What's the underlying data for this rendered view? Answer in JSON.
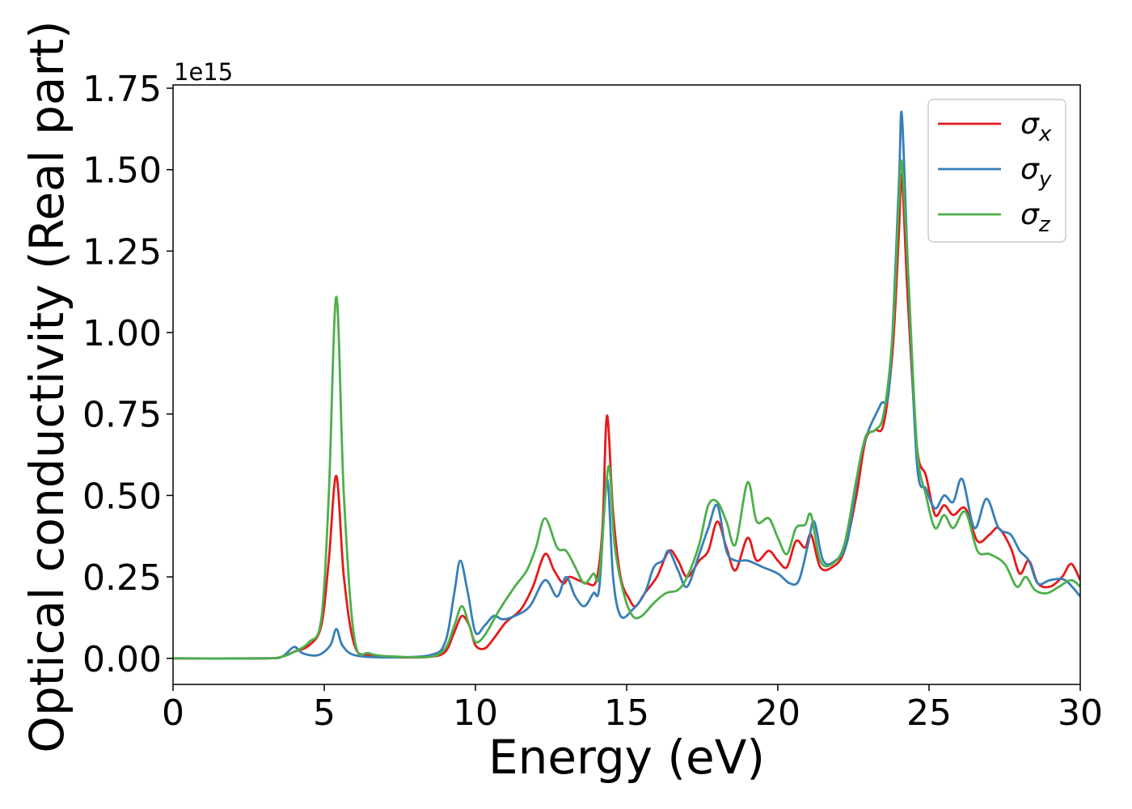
{
  "chart_data": {
    "type": "line",
    "xlabel": "Energy (eV)",
    "ylabel": "Optical conductivity (Real part)",
    "y_offset_label": "1e15",
    "xlim": [
      0,
      30
    ],
    "ylim": [
      -0.08,
      1.76
    ],
    "x_ticks": [
      0,
      5,
      10,
      15,
      20,
      25,
      30
    ],
    "x_tick_labels": [
      "0",
      "5",
      "10",
      "15",
      "20",
      "25",
      "30"
    ],
    "y_ticks": [
      0.0,
      0.25,
      0.5,
      0.75,
      1.0,
      1.25,
      1.5,
      1.75
    ],
    "y_tick_labels": [
      "0.00",
      "0.25",
      "0.50",
      "0.75",
      "1.00",
      "1.25",
      "1.50",
      "1.75"
    ],
    "grid": false,
    "legend_position": "top-right",
    "series": [
      {
        "name": "σx",
        "symbol": "σ",
        "subscript": "x",
        "color": "#e41a1c",
        "points": [
          [
            0,
            0
          ],
          [
            3.0,
            0.0
          ],
          [
            3.6,
            0.005
          ],
          [
            4.0,
            0.02
          ],
          [
            4.5,
            0.04
          ],
          [
            4.9,
            0.1
          ],
          [
            5.15,
            0.3
          ],
          [
            5.4,
            0.56
          ],
          [
            5.65,
            0.25
          ],
          [
            6.0,
            0.04
          ],
          [
            6.5,
            0.01
          ],
          [
            7.5,
            0.003
          ],
          [
            8.5,
            0.005
          ],
          [
            9.0,
            0.02
          ],
          [
            9.3,
            0.08
          ],
          [
            9.55,
            0.13
          ],
          [
            9.8,
            0.1
          ],
          [
            10.0,
            0.04
          ],
          [
            10.3,
            0.03
          ],
          [
            10.6,
            0.06
          ],
          [
            11.0,
            0.11
          ],
          [
            11.5,
            0.15
          ],
          [
            11.9,
            0.22
          ],
          [
            12.3,
            0.32
          ],
          [
            12.6,
            0.27
          ],
          [
            12.9,
            0.23
          ],
          [
            13.1,
            0.25
          ],
          [
            13.4,
            0.24
          ],
          [
            13.7,
            0.23
          ],
          [
            14.0,
            0.24
          ],
          [
            14.2,
            0.4
          ],
          [
            14.35,
            0.745
          ],
          [
            14.55,
            0.45
          ],
          [
            14.8,
            0.25
          ],
          [
            15.1,
            0.18
          ],
          [
            15.3,
            0.16
          ],
          [
            15.6,
            0.2
          ],
          [
            16.0,
            0.25
          ],
          [
            16.4,
            0.33
          ],
          [
            16.7,
            0.3
          ],
          [
            17.0,
            0.25
          ],
          [
            17.4,
            0.3
          ],
          [
            17.7,
            0.33
          ],
          [
            18.0,
            0.42
          ],
          [
            18.3,
            0.34
          ],
          [
            18.6,
            0.27
          ],
          [
            19.0,
            0.37
          ],
          [
            19.3,
            0.3
          ],
          [
            19.7,
            0.33
          ],
          [
            20.0,
            0.3
          ],
          [
            20.3,
            0.28
          ],
          [
            20.6,
            0.36
          ],
          [
            20.9,
            0.34
          ],
          [
            21.1,
            0.38
          ],
          [
            21.4,
            0.28
          ],
          [
            21.8,
            0.28
          ],
          [
            22.2,
            0.33
          ],
          [
            22.6,
            0.5
          ],
          [
            22.9,
            0.67
          ],
          [
            23.2,
            0.7
          ],
          [
            23.5,
            0.72
          ],
          [
            23.8,
            0.95
          ],
          [
            24.0,
            1.3
          ],
          [
            24.1,
            1.48
          ],
          [
            24.3,
            1.1
          ],
          [
            24.6,
            0.65
          ],
          [
            24.9,
            0.56
          ],
          [
            25.2,
            0.44
          ],
          [
            25.5,
            0.47
          ],
          [
            25.8,
            0.44
          ],
          [
            26.2,
            0.46
          ],
          [
            26.6,
            0.36
          ],
          [
            27.0,
            0.38
          ],
          [
            27.3,
            0.4
          ],
          [
            27.7,
            0.34
          ],
          [
            28.0,
            0.26
          ],
          [
            28.3,
            0.3
          ],
          [
            28.6,
            0.23
          ],
          [
            29.0,
            0.22
          ],
          [
            29.4,
            0.25
          ],
          [
            29.7,
            0.29
          ],
          [
            30,
            0.24
          ]
        ]
      },
      {
        "name": "σy",
        "symbol": "σ",
        "subscript": "y",
        "color": "#377eb8",
        "points": [
          [
            0,
            0
          ],
          [
            3.0,
            0.0
          ],
          [
            3.6,
            0.005
          ],
          [
            4.0,
            0.035
          ],
          [
            4.3,
            0.015
          ],
          [
            4.8,
            0.01
          ],
          [
            5.2,
            0.04
          ],
          [
            5.4,
            0.09
          ],
          [
            5.6,
            0.04
          ],
          [
            6.0,
            0.01
          ],
          [
            7.0,
            0.003
          ],
          [
            8.5,
            0.01
          ],
          [
            9.0,
            0.05
          ],
          [
            9.3,
            0.2
          ],
          [
            9.5,
            0.3
          ],
          [
            9.75,
            0.2
          ],
          [
            10.0,
            0.08
          ],
          [
            10.3,
            0.1
          ],
          [
            10.6,
            0.13
          ],
          [
            10.9,
            0.12
          ],
          [
            11.3,
            0.13
          ],
          [
            11.8,
            0.16
          ],
          [
            12.3,
            0.24
          ],
          [
            12.7,
            0.19
          ],
          [
            13.0,
            0.25
          ],
          [
            13.3,
            0.19
          ],
          [
            13.6,
            0.16
          ],
          [
            13.9,
            0.2
          ],
          [
            14.1,
            0.22
          ],
          [
            14.35,
            0.55
          ],
          [
            14.55,
            0.25
          ],
          [
            14.8,
            0.13
          ],
          [
            15.2,
            0.15
          ],
          [
            15.6,
            0.2
          ],
          [
            15.9,
            0.28
          ],
          [
            16.2,
            0.3
          ],
          [
            16.4,
            0.33
          ],
          [
            16.7,
            0.27
          ],
          [
            17.0,
            0.22
          ],
          [
            17.4,
            0.32
          ],
          [
            17.7,
            0.4
          ],
          [
            18.0,
            0.47
          ],
          [
            18.3,
            0.33
          ],
          [
            18.6,
            0.3
          ],
          [
            19.0,
            0.3
          ],
          [
            19.5,
            0.28
          ],
          [
            20.0,
            0.26
          ],
          [
            20.4,
            0.23
          ],
          [
            20.7,
            0.24
          ],
          [
            21.0,
            0.35
          ],
          [
            21.2,
            0.42
          ],
          [
            21.5,
            0.3
          ],
          [
            21.9,
            0.3
          ],
          [
            22.3,
            0.36
          ],
          [
            22.7,
            0.6
          ],
          [
            23.0,
            0.7
          ],
          [
            23.4,
            0.78
          ],
          [
            23.7,
            0.85
          ],
          [
            24.0,
            1.45
          ],
          [
            24.1,
            1.67
          ],
          [
            24.3,
            1.2
          ],
          [
            24.6,
            0.6
          ],
          [
            24.9,
            0.52
          ],
          [
            25.2,
            0.46
          ],
          [
            25.5,
            0.5
          ],
          [
            25.8,
            0.48
          ],
          [
            26.1,
            0.55
          ],
          [
            26.5,
            0.4
          ],
          [
            26.9,
            0.49
          ],
          [
            27.3,
            0.4
          ],
          [
            27.7,
            0.38
          ],
          [
            28.0,
            0.33
          ],
          [
            28.3,
            0.3
          ],
          [
            28.6,
            0.23
          ],
          [
            29.0,
            0.24
          ],
          [
            29.5,
            0.24
          ],
          [
            30,
            0.19
          ]
        ]
      },
      {
        "name": "σz",
        "symbol": "σ",
        "subscript": "z",
        "color": "#4daf4a",
        "points": [
          [
            0,
            0
          ],
          [
            3.0,
            0.0
          ],
          [
            3.6,
            0.005
          ],
          [
            4.0,
            0.02
          ],
          [
            4.5,
            0.05
          ],
          [
            4.9,
            0.12
          ],
          [
            5.15,
            0.5
          ],
          [
            5.4,
            1.11
          ],
          [
            5.65,
            0.5
          ],
          [
            6.0,
            0.06
          ],
          [
            6.5,
            0.015
          ],
          [
            7.5,
            0.005
          ],
          [
            8.5,
            0.005
          ],
          [
            9.0,
            0.03
          ],
          [
            9.3,
            0.1
          ],
          [
            9.55,
            0.16
          ],
          [
            9.8,
            0.1
          ],
          [
            10.0,
            0.05
          ],
          [
            10.3,
            0.07
          ],
          [
            10.8,
            0.15
          ],
          [
            11.3,
            0.22
          ],
          [
            11.7,
            0.27
          ],
          [
            12.0,
            0.34
          ],
          [
            12.3,
            0.43
          ],
          [
            12.7,
            0.34
          ],
          [
            13.0,
            0.33
          ],
          [
            13.3,
            0.28
          ],
          [
            13.6,
            0.23
          ],
          [
            13.9,
            0.26
          ],
          [
            14.1,
            0.26
          ],
          [
            14.4,
            0.59
          ],
          [
            14.6,
            0.35
          ],
          [
            14.9,
            0.2
          ],
          [
            15.2,
            0.13
          ],
          [
            15.5,
            0.13
          ],
          [
            15.9,
            0.17
          ],
          [
            16.3,
            0.2
          ],
          [
            16.7,
            0.21
          ],
          [
            17.0,
            0.25
          ],
          [
            17.4,
            0.35
          ],
          [
            17.7,
            0.47
          ],
          [
            18.0,
            0.48
          ],
          [
            18.3,
            0.42
          ],
          [
            18.6,
            0.35
          ],
          [
            19.0,
            0.54
          ],
          [
            19.3,
            0.42
          ],
          [
            19.7,
            0.43
          ],
          [
            20.0,
            0.37
          ],
          [
            20.3,
            0.32
          ],
          [
            20.6,
            0.4
          ],
          [
            20.9,
            0.41
          ],
          [
            21.1,
            0.44
          ],
          [
            21.4,
            0.3
          ],
          [
            21.8,
            0.29
          ],
          [
            22.2,
            0.35
          ],
          [
            22.6,
            0.55
          ],
          [
            22.9,
            0.68
          ],
          [
            23.2,
            0.7
          ],
          [
            23.5,
            0.75
          ],
          [
            23.8,
            1.0
          ],
          [
            24.0,
            1.4
          ],
          [
            24.1,
            1.52
          ],
          [
            24.3,
            1.2
          ],
          [
            24.6,
            0.65
          ],
          [
            24.9,
            0.5
          ],
          [
            25.2,
            0.4
          ],
          [
            25.5,
            0.44
          ],
          [
            25.8,
            0.4
          ],
          [
            26.2,
            0.45
          ],
          [
            26.6,
            0.33
          ],
          [
            27.0,
            0.32
          ],
          [
            27.5,
            0.29
          ],
          [
            27.9,
            0.22
          ],
          [
            28.2,
            0.25
          ],
          [
            28.5,
            0.21
          ],
          [
            28.9,
            0.2
          ],
          [
            29.3,
            0.22
          ],
          [
            29.7,
            0.24
          ],
          [
            30,
            0.22
          ]
        ]
      }
    ]
  }
}
